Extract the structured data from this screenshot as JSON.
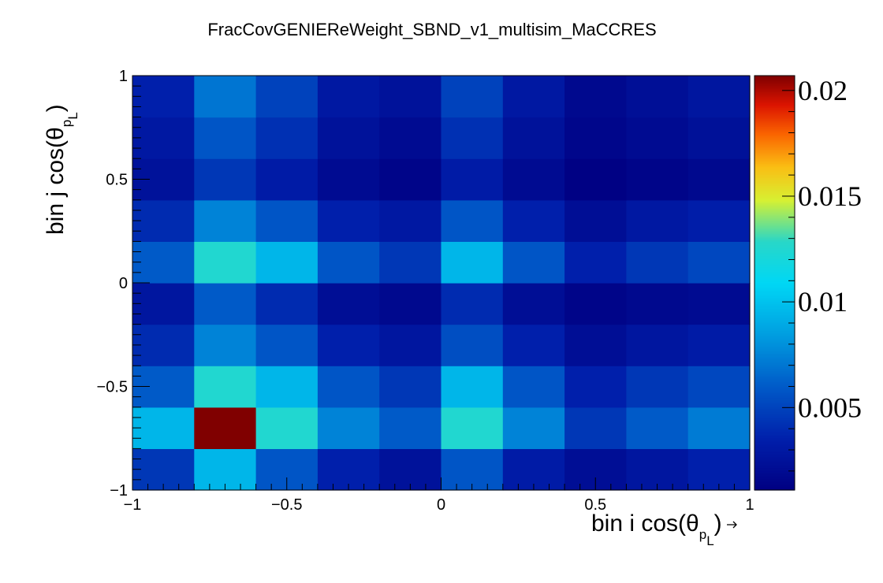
{
  "chart_data": {
    "type": "heatmap",
    "title": "FracCovGENIEReWeight_SBND_v1_multisim_MaCCRES",
    "xlabel": {
      "main": "bin i cos(θ",
      "sub": "p",
      "subsub": "L",
      "close": ")"
    },
    "ylabel": {
      "main": "bin j cos(θ",
      "sub": "p",
      "subsub": "L",
      "close": ")"
    },
    "xlim": [
      -1,
      1
    ],
    "ylim": [
      -1,
      1
    ],
    "nx": 10,
    "ny": 10,
    "x_tick_labels": [
      "−1",
      "−0.5",
      "0",
      "0.5",
      "1"
    ],
    "x_tick_values": [
      -1,
      -0.5,
      0,
      0.5,
      1
    ],
    "y_tick_labels": [
      "−1",
      "−0.5",
      "0",
      "0.5",
      "1"
    ],
    "y_tick_values": [
      -1,
      -0.5,
      0,
      0.5,
      1
    ],
    "z_range": [
      0.0011,
      0.0207
    ],
    "colorbar_tick_labels": [
      "0.005",
      "0.01",
      "0.015",
      "0.02"
    ],
    "colorbar_tick_values": [
      0.005,
      0.01,
      0.015,
      0.02
    ],
    "values_rows_from_bottom": [
      [
        0.0045,
        0.0095,
        0.0058,
        0.0035,
        0.0025,
        0.0058,
        0.0032,
        0.0022,
        0.0028,
        0.0035
      ],
      [
        0.0095,
        0.0207,
        0.0125,
        0.0075,
        0.006,
        0.0125,
        0.0075,
        0.0045,
        0.006,
        0.0072
      ],
      [
        0.006,
        0.0125,
        0.0095,
        0.0058,
        0.0045,
        0.0095,
        0.0058,
        0.0035,
        0.0045,
        0.0052
      ],
      [
        0.004,
        0.0075,
        0.0058,
        0.0035,
        0.0028,
        0.0055,
        0.0035,
        0.0022,
        0.0028,
        0.0032
      ],
      [
        0.0028,
        0.006,
        0.004,
        0.0022,
        0.0018,
        0.004,
        0.0022,
        0.0015,
        0.0018,
        0.002
      ],
      [
        0.006,
        0.0125,
        0.0095,
        0.0058,
        0.0045,
        0.0095,
        0.0058,
        0.0035,
        0.0045,
        0.0052
      ],
      [
        0.004,
        0.0075,
        0.0058,
        0.0035,
        0.003,
        0.0058,
        0.0035,
        0.0022,
        0.003,
        0.0034
      ],
      [
        0.0025,
        0.0045,
        0.0032,
        0.002,
        0.0015,
        0.0032,
        0.002,
        0.0012,
        0.0015,
        0.0018
      ],
      [
        0.003,
        0.0058,
        0.0042,
        0.0025,
        0.002,
        0.0042,
        0.0025,
        0.0016,
        0.002,
        0.0024
      ],
      [
        0.0035,
        0.007,
        0.005,
        0.003,
        0.0025,
        0.005,
        0.003,
        0.0018,
        0.0023,
        0.0028
      ]
    ]
  }
}
